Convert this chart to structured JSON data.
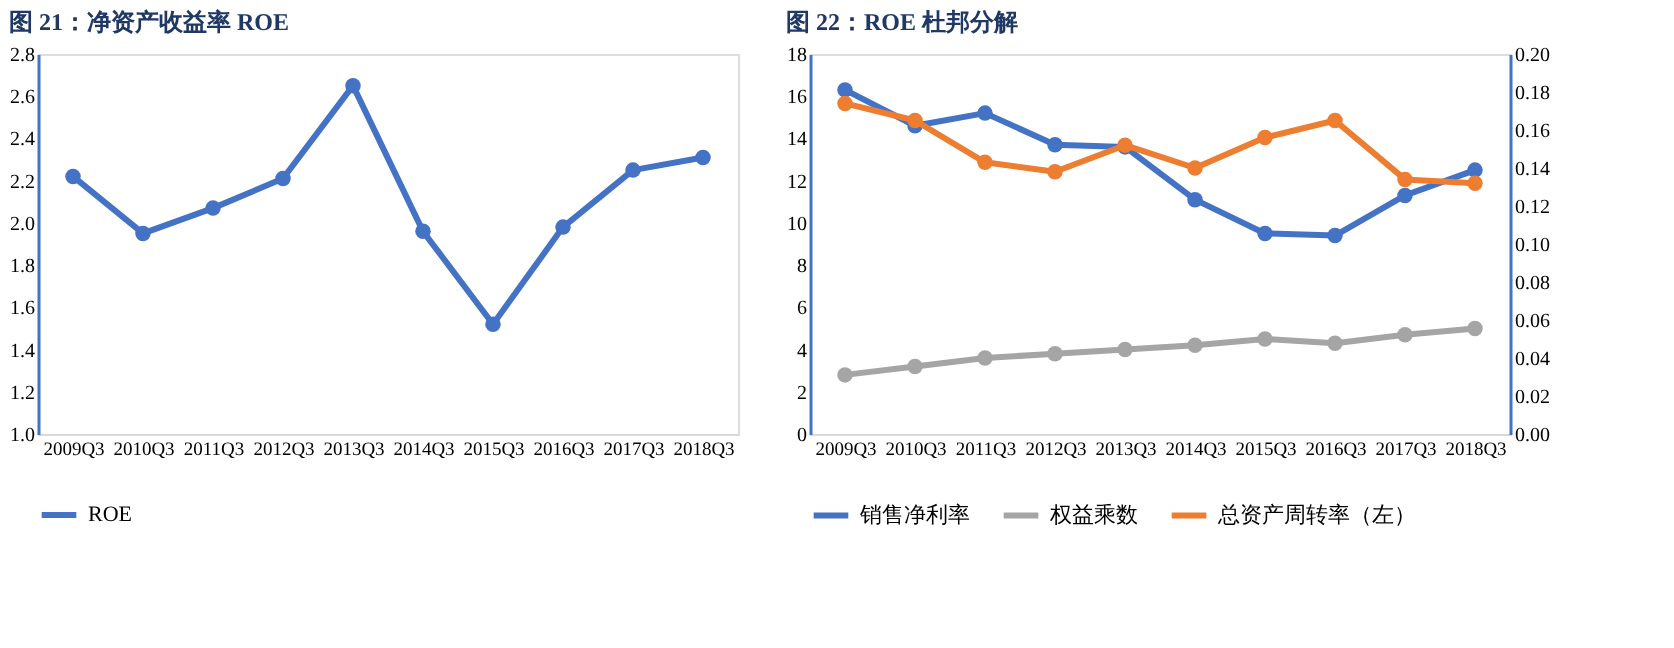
{
  "chart_data": [
    {
      "type": "line",
      "title": "图 21：净资产收益率 ROE",
      "categories": [
        "2009Q3",
        "2010Q3",
        "2011Q3",
        "2012Q3",
        "2013Q3",
        "2014Q3",
        "2015Q3",
        "2016Q3",
        "2017Q3",
        "2018Q3"
      ],
      "series": [
        {
          "name": "ROE",
          "color": "#4472c4",
          "values": [
            2.22,
            1.95,
            2.07,
            2.21,
            2.65,
            1.96,
            1.52,
            1.98,
            2.25,
            2.31
          ]
        }
      ],
      "ylim": [
        1.0,
        2.8
      ],
      "yticks": [
        {
          "value": 1.0,
          "label": "1.0"
        },
        {
          "value": 1.2,
          "label": "1.2"
        },
        {
          "value": 1.4,
          "label": "1.4"
        },
        {
          "value": 1.6,
          "label": "1.6"
        },
        {
          "value": 1.8,
          "label": "1.8"
        },
        {
          "value": 2.0,
          "label": "2.0"
        },
        {
          "value": 2.2,
          "label": "2.2"
        },
        {
          "value": 2.4,
          "label": "2.4"
        },
        {
          "value": 2.6,
          "label": "2.6"
        },
        {
          "value": 2.8,
          "label": "2.8"
        }
      ],
      "grid": false,
      "legend": "bottom",
      "marker": "circle",
      "line_style": "solid"
    },
    {
      "type": "line",
      "title": "图 22：ROE 杜邦分解",
      "categories": [
        "2009Q3",
        "2010Q3",
        "2011Q3",
        "2012Q3",
        "2013Q3",
        "2014Q3",
        "2015Q3",
        "2016Q3",
        "2017Q3",
        "2018Q3"
      ],
      "series": [
        {
          "name": "销售净利率",
          "color": "#4472c4",
          "values": [
            16.3,
            14.6,
            15.2,
            13.7,
            13.6,
            11.1,
            9.5,
            9.4,
            11.3,
            12.5
          ]
        },
        {
          "name": "权益乘数",
          "color": "#a5a5a5",
          "values": [
            2.8,
            3.2,
            3.6,
            3.8,
            4.0,
            4.2,
            4.5,
            4.3,
            4.7,
            5.0
          ]
        },
        {
          "name": "总资产周转率（左）",
          "color": "#ed7d31",
          "axis": "y2",
          "values": [
            0.174,
            0.165,
            0.143,
            0.138,
            0.152,
            0.14,
            0.156,
            0.165,
            0.134,
            0.132
          ]
        }
      ],
      "ylim": [
        0,
        18
      ],
      "yticks": [
        0,
        2,
        4,
        6,
        8,
        10,
        12,
        14,
        16,
        18
      ],
      "y2lim": [
        0,
        0.2
      ],
      "y2ticks": [
        {
          "value": 0,
          "label": "0.00"
        },
        {
          "value": 0.02,
          "label": "0.02"
        },
        {
          "value": 0.04,
          "label": "0.04"
        },
        {
          "value": 0.06,
          "label": "0.06"
        },
        {
          "value": 0.08,
          "label": "0.08"
        },
        {
          "value": 0.1,
          "label": "0.10"
        },
        {
          "value": 0.12,
          "label": "0.12"
        },
        {
          "value": 0.14,
          "label": "0.14"
        },
        {
          "value": 0.16,
          "label": "0.16"
        },
        {
          "value": 0.18,
          "label": "0.18"
        },
        {
          "value": 0.2,
          "label": "0.20"
        }
      ],
      "grid": false,
      "legend": "bottom",
      "marker": "circle",
      "line_style": "solid"
    }
  ]
}
